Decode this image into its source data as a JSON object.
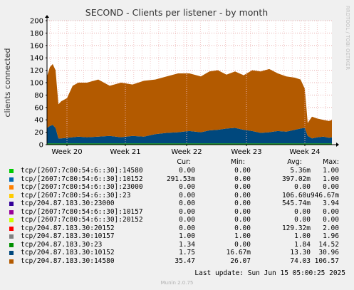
{
  "page": {
    "title": "SECOND - Clients per listener - by month",
    "side_label": "RRDTOOL / TOBI OETIKER",
    "last_update": "Last update:  Sun Jun 15 05:00:25 2025",
    "munin_version": "Munin 2.0.75"
  },
  "chart_data": {
    "type": "area",
    "title": "SECOND - Clients per listener - by month",
    "xlabel": "",
    "ylabel": "clients connected",
    "ylim": [
      0,
      200
    ],
    "y_ticks": [
      0,
      20,
      40,
      60,
      80,
      100,
      120,
      140,
      160,
      180,
      200
    ],
    "x_ticks": [
      "Week 20",
      "Week 21",
      "Week 22",
      "Week 23",
      "Week 24"
    ],
    "grid": true,
    "legend": "bottom",
    "stacked": true,
    "series_order_bottom_to_top": [
      "s9",
      "s8",
      "s7"
    ],
    "stack_profile": {
      "x": [
        0,
        0.01,
        0.02,
        0.03,
        0.04,
        0.05,
        0.07,
        0.09,
        0.11,
        0.14,
        0.18,
        0.22,
        0.26,
        0.3,
        0.34,
        0.38,
        0.42,
        0.46,
        0.5,
        0.54,
        0.57,
        0.6,
        0.63,
        0.66,
        0.69,
        0.72,
        0.75,
        0.78,
        0.81,
        0.84,
        0.87,
        0.89,
        0.905,
        0.915,
        0.93,
        0.95,
        0.97,
        0.99,
        1.0
      ],
      "total": [
        110,
        125,
        130,
        120,
        65,
        70,
        75,
        95,
        100,
        100,
        105,
        95,
        100,
        97,
        103,
        105,
        110,
        115,
        115,
        110,
        118,
        120,
        113,
        118,
        112,
        120,
        118,
        122,
        115,
        110,
        108,
        105,
        90,
        35,
        45,
        42,
        40,
        38,
        40
      ],
      "s8": [
        25,
        28,
        30,
        25,
        8,
        8,
        9,
        10,
        11,
        10,
        11,
        12,
        10,
        12,
        11,
        15,
        17,
        18,
        20,
        18,
        21,
        22,
        24,
        25,
        22,
        20,
        17,
        18,
        20,
        19,
        22,
        24,
        25,
        12,
        8,
        10,
        11,
        9,
        10
      ],
      "s7": [
        2,
        2,
        2,
        2,
        2,
        2,
        2,
        2,
        2,
        2,
        2,
        2,
        2,
        2,
        2,
        2,
        2,
        2,
        2,
        2,
        2,
        2,
        2,
        2,
        2,
        2,
        2,
        2,
        2,
        2,
        2,
        2,
        2,
        2,
        2,
        2,
        2,
        2,
        2
      ]
    },
    "legend_headers": {
      "cur": "Cur:",
      "min": "Min:",
      "avg": "Avg:",
      "max": "Max:"
    },
    "series": [
      {
        "name": "tcp/[2607:7c80:54:6::30]:14580",
        "color": "#00cc00",
        "cur": "0.00",
        "min": "0.00",
        "avg": "5.36m",
        "max": "1.00"
      },
      {
        "name": "tcp/[2607:7c80:54:6::30]:10152",
        "color": "#0066b3",
        "cur": "291.53m",
        "min": "0.00",
        "avg": "397.02m",
        "max": "1.00"
      },
      {
        "name": "tcp/[2607:7c80:54:6::30]:23000",
        "color": "#ff8000",
        "cur": "0.00",
        "min": "0.00",
        "avg": "0.00",
        "max": "0.00"
      },
      {
        "name": "tcp/[2607:7c80:54:6::30]:23",
        "color": "#ffcc00",
        "cur": "0.00",
        "min": "0.00",
        "avg": "106.60u",
        "max": "946.67m"
      },
      {
        "name": "tcp/204.87.183.30:23000",
        "color": "#330099",
        "cur": "0.00",
        "min": "0.00",
        "avg": "545.74m",
        "max": "3.94"
      },
      {
        "name": "tcp/[2607:7c80:54:6::30]:10157",
        "color": "#990099",
        "cur": "0.00",
        "min": "0.00",
        "avg": "0.00",
        "max": "0.00"
      },
      {
        "name": "tcp/[2607:7c80:54:6::30]:20152",
        "color": "#ccff00",
        "cur": "0.00",
        "min": "0.00",
        "avg": "0.00",
        "max": "0.00"
      },
      {
        "name": "tcp/204.87.183.30:20152",
        "color": "#ff0000",
        "cur": "0.00",
        "min": "0.00",
        "avg": "129.32m",
        "max": "2.00"
      },
      {
        "name": "tcp/204.87.183.30:10157",
        "color": "#808080",
        "cur": "1.00",
        "min": "1.00",
        "avg": "1.00",
        "max": "1.96"
      },
      {
        "name": "tcp/204.87.183.30:23",
        "color": "#008f00",
        "cur": "1.34",
        "min": "0.00",
        "avg": "1.84",
        "max": "14.52"
      },
      {
        "name": "tcp/204.87.183.30:10152",
        "color": "#00487d",
        "cur": "1.75",
        "min": "16.67m",
        "avg": "13.30",
        "max": "30.96"
      },
      {
        "name": "tcp/204.87.183.30:14580",
        "color": "#b35a00",
        "cur": "35.47",
        "min": "26.07",
        "avg": "74.03",
        "max": "106.57"
      }
    ]
  }
}
